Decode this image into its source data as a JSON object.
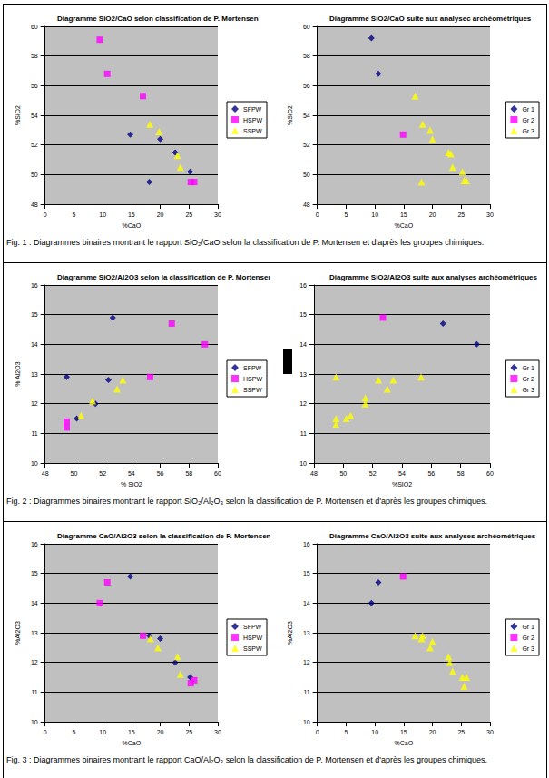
{
  "chart_data": [
    {
      "type": "scatter",
      "title": "Diagramme SiO2/CaO selon classification de P. Mortensen",
      "xlabel": "%CaO",
      "ylabel": "%SiO2",
      "xlim": [
        0,
        30
      ],
      "xticks": [
        0,
        5,
        10,
        15,
        20,
        25,
        30
      ],
      "ylim": [
        48,
        60
      ],
      "yticks": [
        48,
        50,
        52,
        54,
        56,
        58,
        60
      ],
      "grid": true,
      "legend": "right",
      "series": [
        {
          "name": "SFPW",
          "color": "#000080",
          "marker": "diamond",
          "x": [
            14.8,
            20.0,
            18.1,
            22.6,
            25.2
          ],
          "values": [
            52.7,
            52.4,
            49.5,
            51.5,
            50.2
          ]
        },
        {
          "name": "HSPW",
          "color": "#ff00ff",
          "marker": "square",
          "x": [
            9.5,
            10.8,
            17.0,
            25.3,
            25.9
          ],
          "values": [
            59.1,
            56.8,
            55.3,
            49.5,
            49.5
          ]
        },
        {
          "name": "SSPW",
          "color": "#ffff00",
          "marker": "triangle",
          "x": [
            18.2,
            19.8,
            23.0,
            23.5
          ],
          "values": [
            53.4,
            52.9,
            51.3,
            50.5
          ]
        }
      ]
    },
    {
      "type": "scatter",
      "title": "Diagramme SiO2/CaO suite aux analysec archéométriques",
      "xlabel": "%CaO",
      "ylabel": "%SiO2",
      "xlim": [
        0,
        30
      ],
      "xticks": [
        0,
        5,
        10,
        15,
        20,
        25,
        30
      ],
      "ylim": [
        48,
        60
      ],
      "yticks": [
        48,
        50,
        52,
        54,
        56,
        58,
        60
      ],
      "grid": true,
      "legend": "right",
      "series": [
        {
          "name": "Gr 1",
          "color": "#000080",
          "marker": "diamond",
          "x": [
            9.4,
            10.6
          ],
          "values": [
            59.2,
            56.8
          ]
        },
        {
          "name": "Gr 2",
          "color": "#ff00ff",
          "marker": "square",
          "x": [
            14.9
          ],
          "values": [
            52.7
          ]
        },
        {
          "name": "Gr 3",
          "color": "#ffff00",
          "marker": "triangle",
          "x": [
            17.0,
            18.3,
            19.6,
            20.0,
            18.1,
            22.8,
            23.2,
            23.5,
            25.2,
            25.5,
            25.9
          ],
          "values": [
            55.3,
            53.4,
            53.0,
            52.4,
            49.5,
            51.5,
            51.4,
            50.5,
            50.2,
            49.6,
            49.6
          ]
        }
      ]
    },
    {
      "type": "scatter",
      "title": "Diagramme SiO2/Al2O3 selon la classification de P. Mortensen",
      "xlabel": "% SiO2",
      "ylabel": "% Al2O3",
      "xlim": [
        48,
        60
      ],
      "xticks": [
        48,
        50,
        52,
        54,
        56,
        58,
        60
      ],
      "ylim": [
        10,
        16
      ],
      "yticks": [
        10,
        11,
        12,
        13,
        14,
        15,
        16
      ],
      "grid": true,
      "legend": "right",
      "series": [
        {
          "name": "SFPW",
          "color": "#000080",
          "marker": "diamond",
          "x": [
            49.5,
            52.7,
            52.4,
            50.2,
            51.5
          ],
          "values": [
            12.9,
            14.9,
            12.8,
            11.5,
            12.0
          ]
        },
        {
          "name": "HSPW",
          "color": "#ff00ff",
          "marker": "square",
          "x": [
            56.8,
            59.1,
            55.3,
            49.5,
            49.5
          ],
          "values": [
            14.7,
            14.0,
            12.9,
            11.4,
            11.2
          ]
        },
        {
          "name": "SSPW",
          "color": "#ffff00",
          "marker": "triangle",
          "x": [
            50.5,
            51.3,
            53.0,
            53.4
          ],
          "values": [
            11.6,
            12.1,
            12.5,
            12.8
          ]
        }
      ]
    },
    {
      "type": "scatter",
      "title": "Diagramme SiO2/Al2O3 suite aux analyses archéométriques",
      "xlabel": "%SIO2",
      "xlim": [
        48,
        60
      ],
      "xticks": [
        48,
        50,
        52,
        54,
        56,
        58,
        60
      ],
      "ylim": [
        10,
        16
      ],
      "yticks": [
        10,
        11,
        12,
        13,
        14,
        15,
        16
      ],
      "grid": true,
      "legend": "right",
      "series": [
        {
          "name": "Gr 1",
          "color": "#000080",
          "marker": "diamond",
          "x": [
            56.8,
            59.1
          ],
          "values": [
            14.7,
            14.0
          ]
        },
        {
          "name": "Gr 2",
          "color": "#ff00ff",
          "marker": "square",
          "x": [
            52.7
          ],
          "values": [
            14.9
          ]
        },
        {
          "name": "Gr 3",
          "color": "#ffff00",
          "marker": "triangle",
          "x": [
            49.5,
            49.5,
            49.5,
            50.2,
            50.5,
            51.5,
            51.5,
            52.4,
            53.0,
            53.4,
            55.3
          ],
          "values": [
            12.9,
            11.5,
            11.3,
            11.5,
            11.6,
            12.0,
            12.2,
            12.8,
            12.5,
            12.8,
            12.9
          ]
        }
      ]
    },
    {
      "type": "scatter",
      "title": "Diagramme CaO/Al2O3 selon la classification de P. Mortensen",
      "xlabel": "%CaO",
      "ylabel": "%Al2O3",
      "xlim": [
        0,
        30
      ],
      "xticks": [
        0,
        5,
        10,
        15,
        20,
        25,
        30
      ],
      "ylim": [
        10,
        16
      ],
      "yticks": [
        10,
        11,
        12,
        13,
        14,
        15,
        16
      ],
      "grid": true,
      "legend": "right",
      "series": [
        {
          "name": "SFPW",
          "color": "#000080",
          "marker": "diamond",
          "x": [
            14.8,
            20.0,
            18.1,
            22.6,
            25.2
          ],
          "values": [
            14.9,
            12.8,
            12.9,
            12.0,
            11.5
          ]
        },
        {
          "name": "HSPW",
          "color": "#ff00ff",
          "marker": "square",
          "x": [
            9.5,
            10.8,
            17.0,
            25.3,
            25.9
          ],
          "values": [
            14.0,
            14.7,
            12.9,
            11.3,
            11.4
          ]
        },
        {
          "name": "SSPW",
          "color": "#ffff00",
          "marker": "triangle",
          "x": [
            18.3,
            19.6,
            23.0,
            23.5
          ],
          "values": [
            12.8,
            12.5,
            12.2,
            11.6
          ]
        }
      ]
    },
    {
      "type": "scatter",
      "title": "Diagramme CaO/Al2O3 suite aux analyses archéométriques",
      "xlabel": "%CaO",
      "ylabel": "%Al2O3",
      "xlim": [
        0,
        30
      ],
      "xticks": [
        0,
        5,
        10,
        15,
        20,
        25,
        30
      ],
      "ylim": [
        10,
        16
      ],
      "yticks": [
        10,
        11,
        12,
        13,
        14,
        15,
        16
      ],
      "grid": true,
      "legend": "right",
      "series": [
        {
          "name": "Gr 1",
          "color": "#000080",
          "marker": "diamond",
          "x": [
            9.4,
            10.6
          ],
          "values": [
            14.0,
            14.7
          ]
        },
        {
          "name": "Gr 2",
          "color": "#ff00ff",
          "marker": "square",
          "x": [
            14.9
          ],
          "values": [
            14.9
          ]
        },
        {
          "name": "Gr 3",
          "color": "#ffff00",
          "marker": "triangle",
          "x": [
            17.0,
            18.1,
            18.3,
            19.6,
            20.0,
            22.8,
            23.0,
            23.5,
            25.2,
            25.5,
            25.9
          ],
          "values": [
            12.9,
            12.8,
            12.9,
            12.5,
            12.7,
            12.2,
            12.0,
            11.7,
            11.5,
            11.2,
            11.5
          ]
        }
      ]
    }
  ],
  "captions": [
    "Fig. 1 : Diagrammes binaires montrant le rapport SiO₂/CaO selon la classification de P. Mortensen et d'après les groupes chimiques.",
    "Fig. 2 : Diagrammes binaires montrant le rapport SiO₂/Al₂O₃ selon la classification de P. Mortensen et d'après les groupes chimiques.",
    "Fig. 3 : Diagrammes binaires montrant le rapport CaO/Al₂O₃ selon la classification de P. Mortensen et d'après les groupes chimiques."
  ]
}
